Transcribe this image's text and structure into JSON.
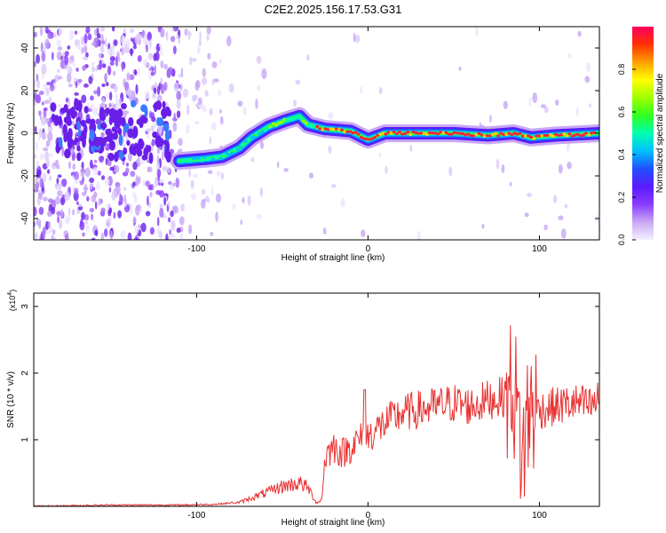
{
  "title": "C2E2.2025.156.17.53.G31",
  "colors": {
    "snr_line": "#e83030",
    "frame": "#000000"
  },
  "chart_data": [
    {
      "type": "heatmap",
      "xlabel": "Height of straight line (km)",
      "ylabel": "Frequency (Hz)",
      "xlim": [
        -195,
        135
      ],
      "ylim": [
        -50,
        50
      ],
      "xticks": [
        -100,
        0,
        100
      ],
      "yticks": [
        -40,
        -20,
        0,
        20,
        40
      ],
      "grid": false,
      "colorbar": {
        "label": "Normalized spectral amplitude",
        "range": [
          0,
          1
        ],
        "ticks": [
          "0.0",
          "0.2",
          "0.4",
          "0.6",
          "0.8"
        ],
        "colormap": [
          "#f4f0ff",
          "#c9a8f5",
          "#8a3bff",
          "#5a1aff",
          "#2050ff",
          "#00c0ff",
          "#00ffb0",
          "#30ff20",
          "#a0ff00",
          "#ffff00",
          "#ffa000",
          "#ff3000",
          "#ff0060"
        ]
      },
      "ridge": [
        {
          "x": -110,
          "f": -13
        },
        {
          "x": -95,
          "f": -12
        },
        {
          "x": -85,
          "f": -11
        },
        {
          "x": -75,
          "f": -7
        },
        {
          "x": -68,
          "f": -2
        },
        {
          "x": -58,
          "f": 3
        },
        {
          "x": -48,
          "f": 6
        },
        {
          "x": -40,
          "f": 8
        },
        {
          "x": -35,
          "f": 4
        },
        {
          "x": -25,
          "f": 2
        },
        {
          "x": -10,
          "f": 1
        },
        {
          "x": 0,
          "f": -3
        },
        {
          "x": 10,
          "f": 0
        },
        {
          "x": 30,
          "f": 0
        },
        {
          "x": 50,
          "f": 0
        },
        {
          "x": 70,
          "f": -1
        },
        {
          "x": 85,
          "f": 0
        },
        {
          "x": 95,
          "f": -2
        },
        {
          "x": 110,
          "f": -1
        },
        {
          "x": 135,
          "f": 0
        }
      ]
    },
    {
      "type": "line",
      "xlabel": "Height of straight line (km)",
      "ylabel": "SNR (10 * v/v)",
      "multiplier": "(x10",
      "multiplier_exp": "4",
      "xlim": [
        -195,
        135
      ],
      "ylim": [
        0,
        3.2
      ],
      "xticks": [
        -100,
        0,
        100
      ],
      "yticks": [
        1,
        2,
        3
      ],
      "grid": false,
      "series": [
        {
          "x": [
            -195,
            -150,
            -110,
            -90,
            -75,
            -60,
            -50,
            -40,
            -35,
            -30,
            -27,
            -25,
            -20,
            -15,
            -10,
            -5,
            0,
            10,
            20,
            30,
            40,
            50,
            60,
            70,
            80,
            85,
            88,
            90,
            93,
            95,
            100,
            110,
            120,
            130,
            135
          ],
          "y": [
            0.0,
            0.02,
            0.02,
            0.03,
            0.06,
            0.2,
            0.3,
            0.35,
            0.28,
            0.05,
            0.1,
            0.75,
            0.9,
            0.8,
            0.9,
            1.0,
            1.05,
            1.25,
            1.4,
            1.45,
            1.5,
            1.55,
            1.5,
            1.6,
            1.65,
            1.8,
            1.2,
            0.7,
            1.3,
            1.5,
            1.45,
            1.5,
            1.55,
            1.5,
            1.6
          ]
        }
      ]
    }
  ]
}
